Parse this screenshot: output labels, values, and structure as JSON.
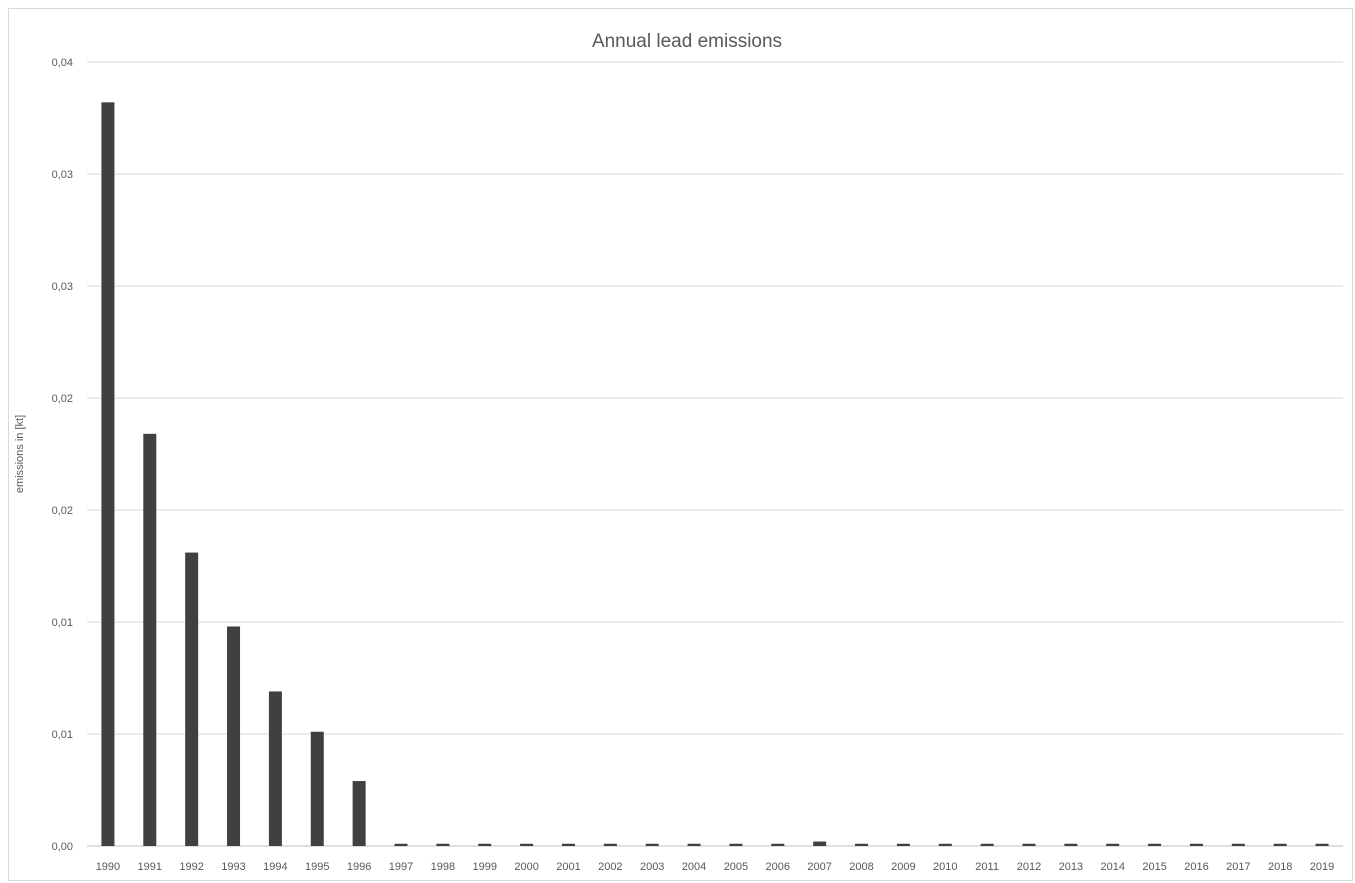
{
  "chart_data": {
    "type": "bar",
    "title": "Annual lead emissions",
    "xlabel": "",
    "ylabel": "emissions in [kt]",
    "categories": [
      "1990",
      "1991",
      "1992",
      "1993",
      "1994",
      "1995",
      "1996",
      "1997",
      "1998",
      "1999",
      "2000",
      "2001",
      "2002",
      "2003",
      "2004",
      "2005",
      "2006",
      "2007",
      "2008",
      "2009",
      "2010",
      "2011",
      "2012",
      "2013",
      "2014",
      "2015",
      "2016",
      "2017",
      "2018",
      "2019"
    ],
    "values": [
      0.0332,
      0.0184,
      0.0131,
      0.0098,
      0.0069,
      0.0051,
      0.0029,
      0.0001,
      0.0001,
      0.0001,
      0.0001,
      0.0001,
      0.0001,
      0.0001,
      0.0001,
      0.0001,
      0.0001,
      0.0002,
      0.0001,
      0.0001,
      0.0001,
      0.0001,
      0.0001,
      0.0001,
      0.0001,
      0.0001,
      0.0001,
      0.0001,
      0.0001,
      0.0001
    ],
    "ylim": [
      0,
      0.035
    ],
    "yticks": [
      0,
      0.005,
      0.01,
      0.015,
      0.02,
      0.025,
      0.03,
      0.035
    ],
    "ytick_labels": [
      "0,00",
      "0,01",
      "0,01",
      "0,02",
      "0,02",
      "0,03",
      "0,03",
      "0,04"
    ],
    "grid": true,
    "legend": "none",
    "bar_color": "#404040",
    "grid_color": "#d9d9d9",
    "text_color": "#595959"
  }
}
